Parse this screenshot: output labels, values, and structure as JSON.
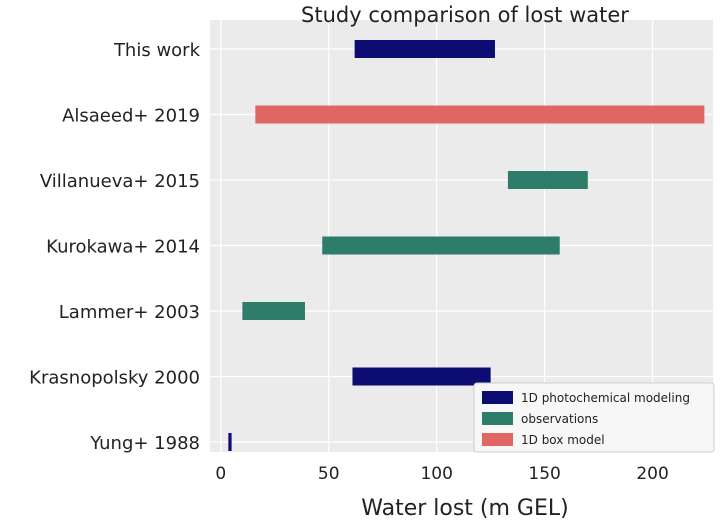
{
  "chart_data": {
    "type": "bar",
    "orientation": "horizontal-range",
    "title": "Study comparison of lost water",
    "xlabel": "Water lost (m GEL)",
    "ylabel": "",
    "xlim": [
      -5,
      228
    ],
    "x_ticks": [
      0,
      50,
      100,
      150,
      200
    ],
    "grid": true,
    "legend_position": "bottom-right",
    "categories": [
      "This work",
      "Alsaeed+ 2019",
      "Villanueva+ 2015",
      "Kurokawa+ 2014",
      "Lammer+ 2003",
      "Krasnopolsky 2000",
      "Yung+ 1988"
    ],
    "series": [
      {
        "name": "1D photochemical modeling",
        "color": "#0c0c72"
      },
      {
        "name": "observations",
        "color": "#2e7d6b"
      },
      {
        "name": "1D box model",
        "color": "#e06666"
      }
    ],
    "bars": [
      {
        "study": "This work",
        "series": "1D photochemical modeling",
        "start": 62,
        "end": 127
      },
      {
        "study": "Alsaeed+ 2019",
        "series": "1D box model",
        "start": 16,
        "end": 224
      },
      {
        "study": "Villanueva+ 2015",
        "series": "observations",
        "start": 133,
        "end": 170
      },
      {
        "study": "Kurokawa+ 2014",
        "series": "observations",
        "start": 47,
        "end": 157
      },
      {
        "study": "Lammer+ 2003",
        "series": "observations",
        "start": 10,
        "end": 39
      },
      {
        "study": "Krasnopolsky 2000",
        "series": "1D photochemical modeling",
        "start": 61,
        "end": 125
      },
      {
        "study": "Yung+ 1988",
        "series": "1D photochemical modeling",
        "start": 3.5,
        "end": 5
      }
    ]
  }
}
